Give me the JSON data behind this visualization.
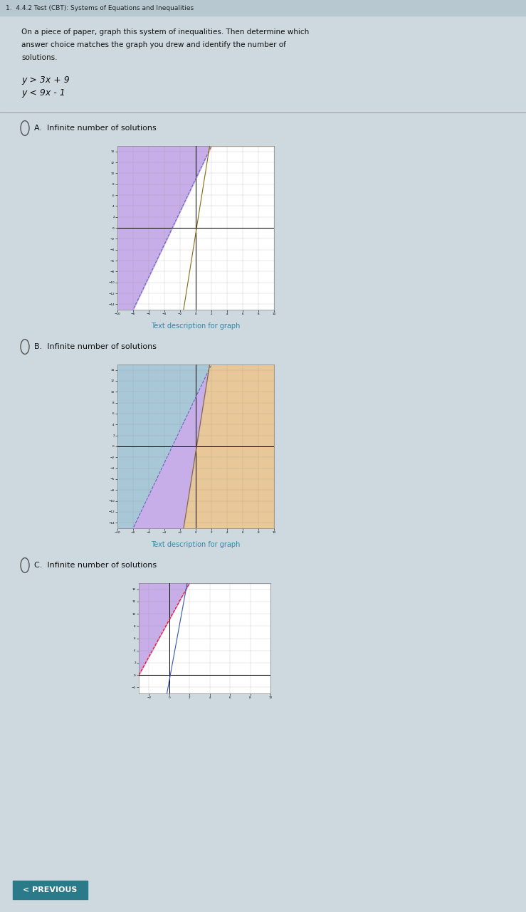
{
  "title_line": "1.  4.4.2 Test (CBT): Systems of Equations and Inequalities",
  "problem_line1": "On a piece of paper, graph this system of inequalities. Then determine which",
  "problem_line2": "answer choice matches the graph you drew and identify the number of",
  "problem_line3": "solutions.",
  "ineq1": "y > 3x + 9",
  "ineq2": "y < 9x - 1",
  "page_bg": "#cdd8df",
  "header_bg": "#b8c8d0",
  "graph_bg": "#ffffff",
  "color_purple": "#c8aee8",
  "color_orange": "#e8c898",
  "color_blue": "#a8c8d8",
  "color_link": "#3388aa",
  "prev_btn_color": "#2a7a8a",
  "prev_btn_text": "< PREVIOUS",
  "radio_color": "#555555",
  "text_color": "#111111",
  "divider_color": "#999999"
}
